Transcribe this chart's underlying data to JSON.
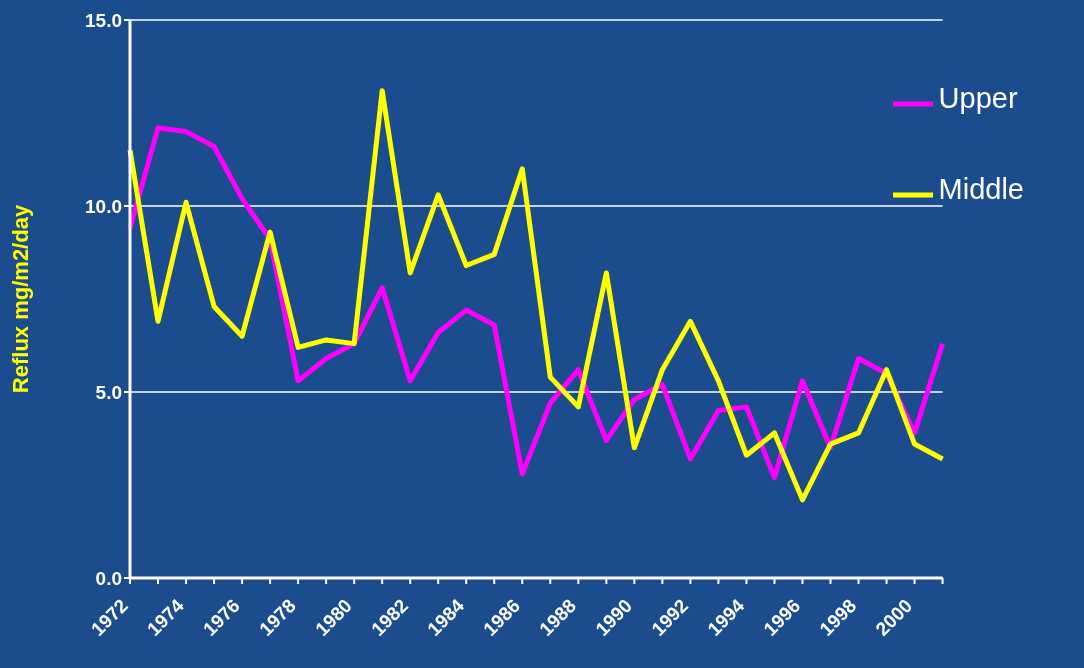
{
  "chart_data": {
    "type": "line",
    "ylabel": "Reflux mg/m2/day",
    "categories": [
      "1972",
      null,
      "1974",
      null,
      "1976",
      null,
      "1978",
      null,
      "1980",
      null,
      "1982",
      null,
      "1984",
      null,
      "1986",
      null,
      "1988",
      null,
      "1990",
      null,
      "1992",
      null,
      "1994",
      null,
      "1996",
      null,
      "1998",
      null,
      "2000",
      null
    ],
    "series": [
      {
        "name": "Upper",
        "color": "#ff00ff",
        "values": [
          9.4,
          12.1,
          12.0,
          11.6,
          10.2,
          9.1,
          5.3,
          5.9,
          6.3,
          7.8,
          5.3,
          6.6,
          7.2,
          6.8,
          2.8,
          4.7,
          5.6,
          3.7,
          4.8,
          5.2,
          3.2,
          4.5,
          4.6,
          2.7,
          5.3,
          3.5,
          5.9,
          5.5,
          3.9,
          6.3
        ]
      },
      {
        "name": "Middle",
        "color": "#ffff00",
        "values": [
          11.5,
          6.9,
          10.1,
          7.3,
          6.5,
          9.3,
          6.2,
          6.4,
          6.3,
          13.1,
          8.2,
          10.3,
          8.4,
          8.7,
          11.0,
          5.4,
          4.6,
          8.2,
          3.5,
          5.6,
          6.9,
          5.3,
          3.3,
          3.9,
          2.1,
          3.6,
          3.9,
          5.6,
          3.6,
          3.2
        ]
      }
    ],
    "ylim": [
      0,
      15
    ],
    "yticks": [
      {
        "value": 0,
        "label": "0.0"
      },
      {
        "value": 5,
        "label": "5.0"
      },
      {
        "value": 10,
        "label": "10.0"
      },
      {
        "value": 15,
        "label": "15.0"
      }
    ],
    "grid": "y",
    "legend": "top right",
    "marker": "none",
    "line_style": "solid"
  }
}
